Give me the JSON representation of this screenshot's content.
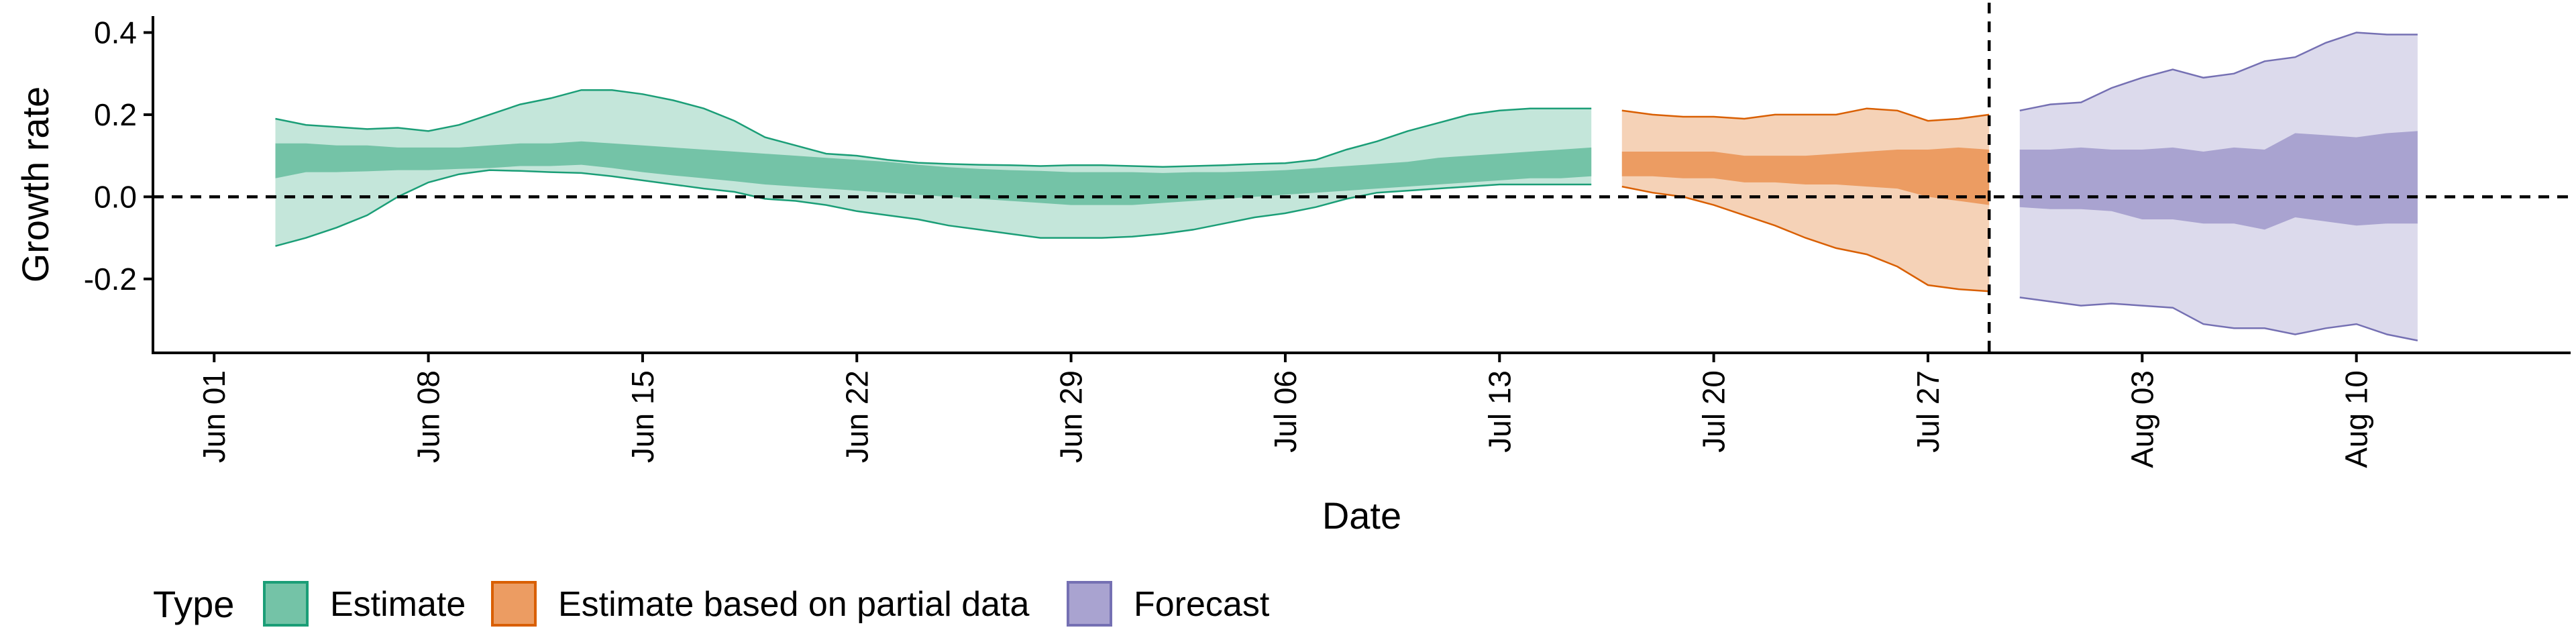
{
  "chart_data": {
    "type": "area",
    "xlabel": "Date",
    "ylabel": "Growth rate",
    "ylim": [
      -0.38,
      0.44
    ],
    "xlim": [
      "2020-05-30",
      "2020-08-17"
    ],
    "y_ticks": [
      {
        "value": 0.4,
        "label": "0.4"
      },
      {
        "value": 0.2,
        "label": "0.2"
      },
      {
        "value": 0.0,
        "label": "0.0"
      },
      {
        "value": -0.2,
        "label": "-0.2"
      }
    ],
    "x_ticks": [
      {
        "date": "2020-06-01",
        "label": "Jun 01"
      },
      {
        "date": "2020-06-08",
        "label": "Jun 08"
      },
      {
        "date": "2020-06-15",
        "label": "Jun 15"
      },
      {
        "date": "2020-06-22",
        "label": "Jun 22"
      },
      {
        "date": "2020-06-29",
        "label": "Jun 29"
      },
      {
        "date": "2020-07-06",
        "label": "Jul 06"
      },
      {
        "date": "2020-07-13",
        "label": "Jul 13"
      },
      {
        "date": "2020-07-20",
        "label": "Jul 20"
      },
      {
        "date": "2020-07-27",
        "label": "Jul 27"
      },
      {
        "date": "2020-08-03",
        "label": "Aug 03"
      },
      {
        "date": "2020-08-10",
        "label": "Aug 10"
      }
    ],
    "reference_lines": {
      "horizontal_y": 0.0,
      "vertical_date": "2020-07-29",
      "style": "dashed"
    },
    "grid": false,
    "legend": {
      "title": "Type",
      "position": "bottom-left",
      "entries": [
        {
          "label": "Estimate",
          "fill": "#74c3a7",
          "stroke": "#1b9e77"
        },
        {
          "label": "Estimate based on partial data",
          "fill": "#ec9c62",
          "stroke": "#d95f02"
        },
        {
          "label": "Forecast",
          "fill": "#a9a3d0",
          "stroke": "#7570b3"
        }
      ]
    },
    "series": [
      {
        "name": "Estimate",
        "line": "#1b9e77",
        "outer_fill": "#c4e6da",
        "inner_fill": "#74c3a7",
        "x": [
          "2020-06-03",
          "2020-06-04",
          "2020-06-05",
          "2020-06-06",
          "2020-06-07",
          "2020-06-08",
          "2020-06-09",
          "2020-06-10",
          "2020-06-11",
          "2020-06-12",
          "2020-06-13",
          "2020-06-14",
          "2020-06-15",
          "2020-06-16",
          "2020-06-17",
          "2020-06-18",
          "2020-06-19",
          "2020-06-20",
          "2020-06-21",
          "2020-06-22",
          "2020-06-23",
          "2020-06-24",
          "2020-06-25",
          "2020-06-26",
          "2020-06-27",
          "2020-06-28",
          "2020-06-29",
          "2020-06-30",
          "2020-07-01",
          "2020-07-02",
          "2020-07-03",
          "2020-07-04",
          "2020-07-05",
          "2020-07-06",
          "2020-07-07",
          "2020-07-08",
          "2020-07-09",
          "2020-07-10",
          "2020-07-11",
          "2020-07-12",
          "2020-07-13",
          "2020-07-14",
          "2020-07-15",
          "2020-07-16"
        ],
        "upper90": [
          0.19,
          0.175,
          0.17,
          0.165,
          0.168,
          0.16,
          0.175,
          0.2,
          0.225,
          0.24,
          0.26,
          0.26,
          0.25,
          0.235,
          0.215,
          0.185,
          0.145,
          0.125,
          0.105,
          0.1,
          0.09,
          0.083,
          0.08,
          0.078,
          0.077,
          0.075,
          0.077,
          0.077,
          0.075,
          0.073,
          0.075,
          0.077,
          0.08,
          0.082,
          0.09,
          0.115,
          0.135,
          0.16,
          0.18,
          0.2,
          0.21,
          0.215,
          0.215,
          0.215
        ],
        "lower90": [
          -0.12,
          -0.1,
          -0.075,
          -0.045,
          0.0,
          0.035,
          0.055,
          0.065,
          0.063,
          0.06,
          0.058,
          0.05,
          0.04,
          0.03,
          0.02,
          0.012,
          -0.005,
          -0.01,
          -0.02,
          -0.035,
          -0.045,
          -0.055,
          -0.07,
          -0.08,
          -0.09,
          -0.1,
          -0.1,
          -0.1,
          -0.097,
          -0.09,
          -0.08,
          -0.065,
          -0.05,
          -0.04,
          -0.025,
          -0.005,
          0.01,
          0.015,
          0.02,
          0.025,
          0.03,
          0.03,
          0.03,
          0.03
        ],
        "upper50": [
          0.13,
          0.13,
          0.125,
          0.125,
          0.12,
          0.12,
          0.12,
          0.125,
          0.13,
          0.13,
          0.135,
          0.13,
          0.125,
          0.12,
          0.115,
          0.11,
          0.105,
          0.1,
          0.095,
          0.09,
          0.085,
          0.078,
          0.072,
          0.068,
          0.065,
          0.063,
          0.06,
          0.06,
          0.06,
          0.058,
          0.06,
          0.06,
          0.062,
          0.065,
          0.07,
          0.075,
          0.08,
          0.085,
          0.095,
          0.1,
          0.105,
          0.11,
          0.115,
          0.12
        ],
        "lower50": [
          0.045,
          0.06,
          0.06,
          0.062,
          0.065,
          0.065,
          0.068,
          0.07,
          0.075,
          0.075,
          0.078,
          0.07,
          0.06,
          0.052,
          0.045,
          0.038,
          0.03,
          0.025,
          0.02,
          0.015,
          0.01,
          0.005,
          0.0,
          -0.005,
          -0.01,
          -0.015,
          -0.02,
          -0.02,
          -0.02,
          -0.015,
          -0.01,
          -0.005,
          0.0,
          0.005,
          0.01,
          0.015,
          0.02,
          0.025,
          0.03,
          0.035,
          0.04,
          0.045,
          0.045,
          0.05
        ]
      },
      {
        "name": "Estimate based on partial data",
        "line": "#d95f02",
        "outer_fill": "#f5d2b7",
        "inner_fill": "#ec9c62",
        "x": [
          "2020-07-17",
          "2020-07-18",
          "2020-07-19",
          "2020-07-20",
          "2020-07-21",
          "2020-07-22",
          "2020-07-23",
          "2020-07-24",
          "2020-07-25",
          "2020-07-26",
          "2020-07-27",
          "2020-07-28",
          "2020-07-29"
        ],
        "upper90": [
          0.21,
          0.2,
          0.195,
          0.195,
          0.19,
          0.2,
          0.2,
          0.2,
          0.215,
          0.21,
          0.185,
          0.19,
          0.2
        ],
        "lower90": [
          0.025,
          0.01,
          0.0,
          -0.02,
          -0.045,
          -0.07,
          -0.1,
          -0.125,
          -0.14,
          -0.17,
          -0.215,
          -0.225,
          -0.23
        ],
        "upper50": [
          0.11,
          0.11,
          0.11,
          0.11,
          0.1,
          0.1,
          0.1,
          0.105,
          0.11,
          0.115,
          0.115,
          0.12,
          0.115
        ],
        "lower50": [
          0.05,
          0.05,
          0.045,
          0.045,
          0.035,
          0.035,
          0.03,
          0.03,
          0.025,
          0.02,
          0.0,
          -0.01,
          -0.02
        ]
      },
      {
        "name": "Forecast",
        "line": "#7570b3",
        "outer_fill": "#dcdaec",
        "inner_fill": "#a9a3d0",
        "x": [
          "2020-07-30",
          "2020-07-31",
          "2020-08-01",
          "2020-08-02",
          "2020-08-03",
          "2020-08-04",
          "2020-08-05",
          "2020-08-06",
          "2020-08-07",
          "2020-08-08",
          "2020-08-09",
          "2020-08-10",
          "2020-08-11",
          "2020-08-12"
        ],
        "upper90": [
          0.21,
          0.225,
          0.23,
          0.265,
          0.29,
          0.31,
          0.29,
          0.3,
          0.33,
          0.34,
          0.375,
          0.4,
          0.395,
          0.395
        ],
        "lower90": [
          -0.245,
          -0.255,
          -0.265,
          -0.26,
          -0.265,
          -0.27,
          -0.31,
          -0.32,
          -0.32,
          -0.335,
          -0.32,
          -0.31,
          -0.335,
          -0.35
        ],
        "upper50": [
          0.115,
          0.115,
          0.12,
          0.115,
          0.115,
          0.12,
          0.11,
          0.12,
          0.115,
          0.155,
          0.15,
          0.145,
          0.155,
          0.16
        ],
        "lower50": [
          -0.025,
          -0.03,
          -0.03,
          -0.035,
          -0.055,
          -0.055,
          -0.065,
          -0.065,
          -0.08,
          -0.05,
          -0.06,
          -0.07,
          -0.065,
          -0.065
        ]
      }
    ]
  }
}
